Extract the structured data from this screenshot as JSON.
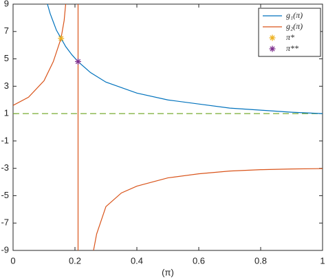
{
  "chart_data": {
    "type": "line",
    "x_label": "(π)",
    "xlim": [
      0,
      1
    ],
    "xticks": [
      0,
      0.2,
      0.4,
      0.6,
      0.8,
      1
    ],
    "ylim": [
      -9,
      9
    ],
    "yticks": [
      9,
      7,
      5,
      3,
      1,
      -1,
      -3,
      -5,
      -7,
      -9
    ],
    "legend": "top-right",
    "series": [
      {
        "name": "g₁(π)",
        "color": "#0072bd",
        "x": [
          0.111,
          0.12,
          0.13,
          0.14,
          0.155,
          0.17,
          0.19,
          0.21,
          0.25,
          0.3,
          0.35,
          0.4,
          0.5,
          0.6,
          0.7,
          0.8,
          0.9,
          1
        ],
        "values": [
          9,
          8.3,
          7.7,
          7.1,
          6.5,
          5.9,
          5.3,
          4.8,
          4,
          3.3,
          2.9,
          2.5,
          2,
          1.7,
          1.4,
          1.25,
          1.1,
          1
        ]
      },
      {
        "name": "g₂(π)",
        "color": "#d95319",
        "x": [
          0,
          0.05,
          0.1,
          0.13,
          0.155,
          0.165,
          0.17,
          0.19,
          0.21,
          0.21,
          0.23,
          0.26,
          0.27,
          0.3,
          0.35,
          0.4,
          0.5,
          0.6,
          0.7,
          0.8,
          0.9,
          1
        ],
        "values": [
          1.6,
          2.2,
          3.4,
          4.8,
          6.5,
          7.8,
          9,
          null,
          9,
          -9,
          null,
          -9,
          -7.8,
          -5.8,
          -4.8,
          -4.3,
          -3.7,
          -3.4,
          -3.2,
          -3.1,
          -3.05,
          -3.02
        ]
      },
      {
        "name": "π*",
        "type": "scatter",
        "color": "#edb120",
        "x": [
          0.155
        ],
        "values": [
          6.5
        ]
      },
      {
        "name": "π**",
        "type": "scatter",
        "color": "#7e2f8e",
        "x": [
          0.21
        ],
        "values": [
          4.8
        ]
      }
    ],
    "reference_line": {
      "value": 1,
      "color": "#77ac30",
      "dashed": true
    }
  }
}
